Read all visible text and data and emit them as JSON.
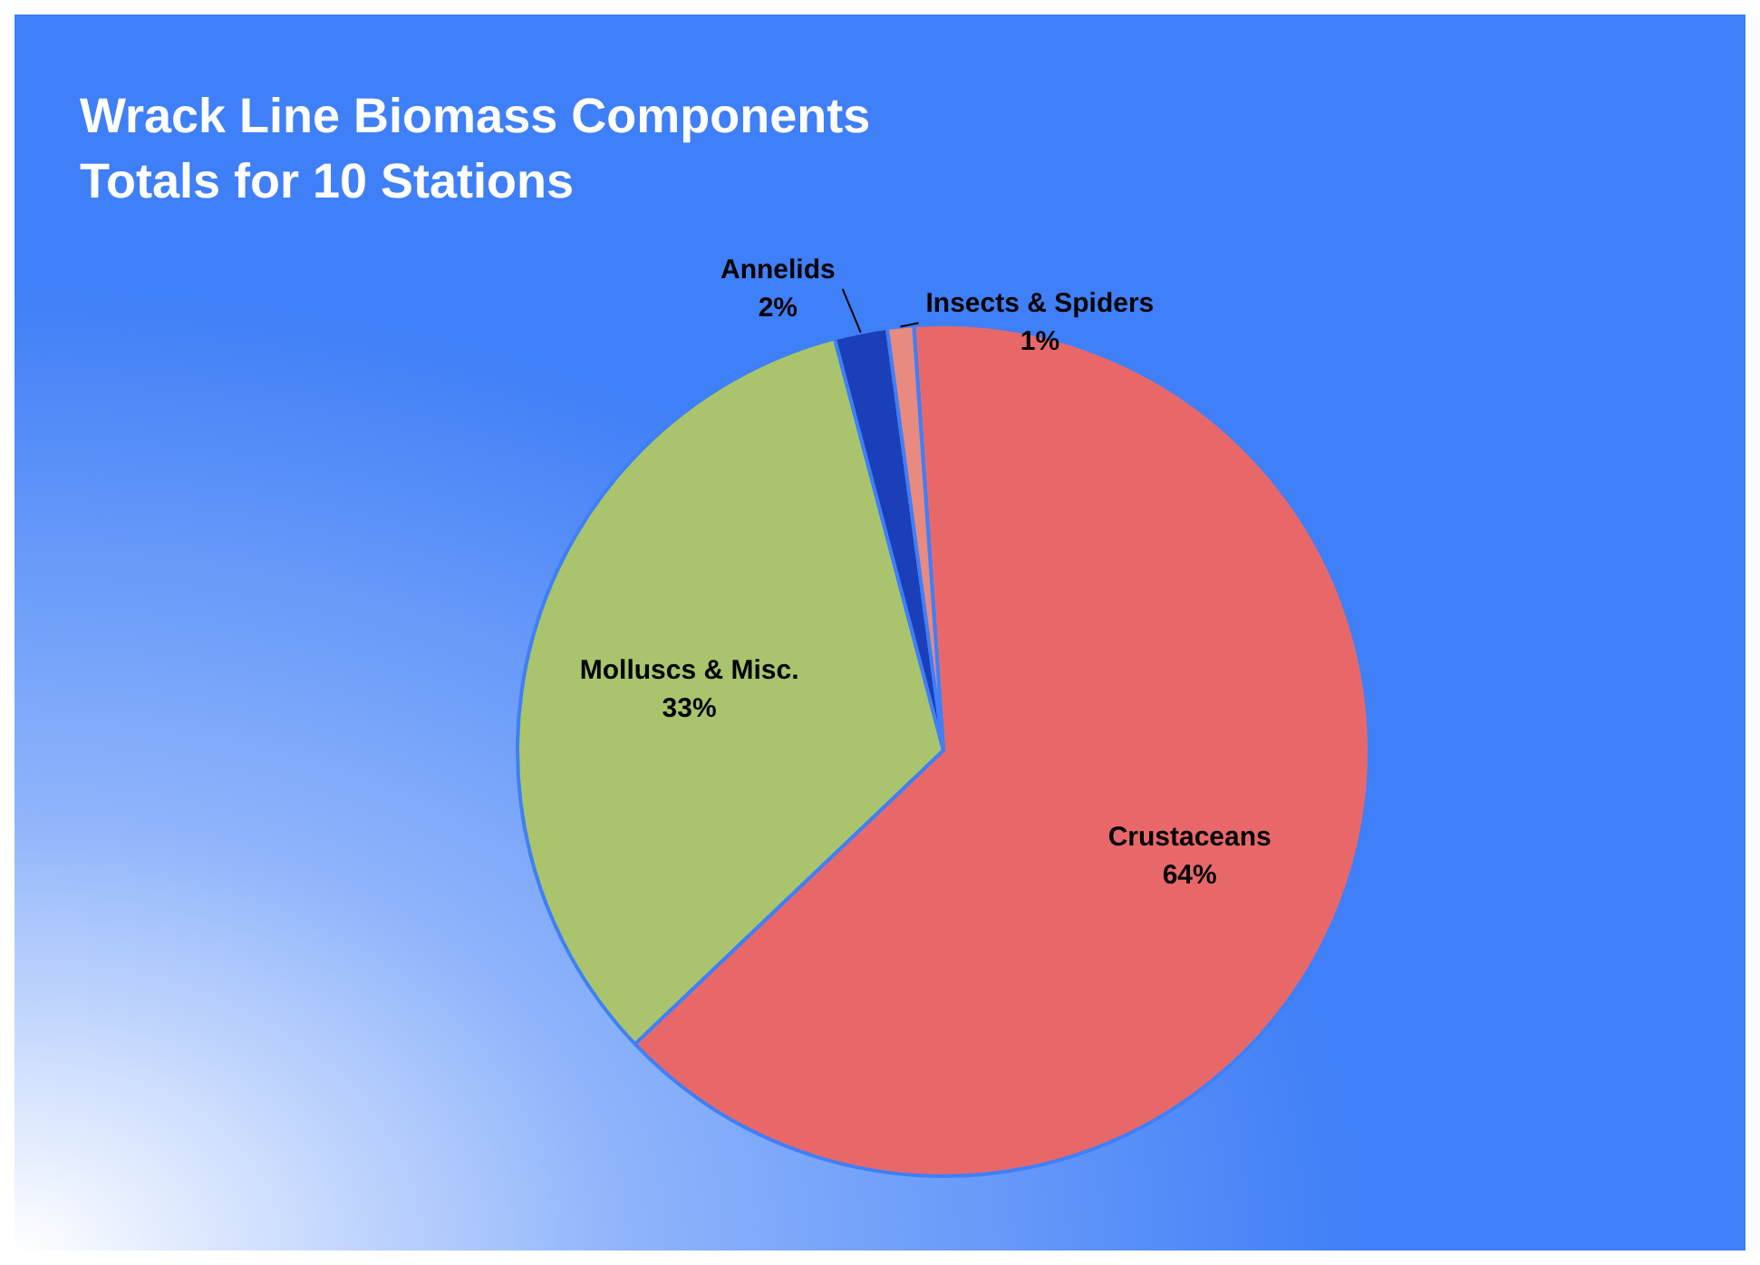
{
  "chart_data": {
    "type": "pie",
    "title": "Wrack Line Biomass Components",
    "subtitle": "Totals for 10 Stations",
    "categories": [
      "Crustaceans",
      "Molluscs & Misc.",
      "Annelids",
      "Insects & Spiders"
    ],
    "values": [
      64,
      33,
      2,
      1
    ],
    "colors": [
      "#e8686a",
      "#a9c46c",
      "#1a3fb8",
      "#e88a80"
    ],
    "value_labels": [
      "64%",
      "33%",
      "2%",
      "1%"
    ],
    "legend": false
  }
}
